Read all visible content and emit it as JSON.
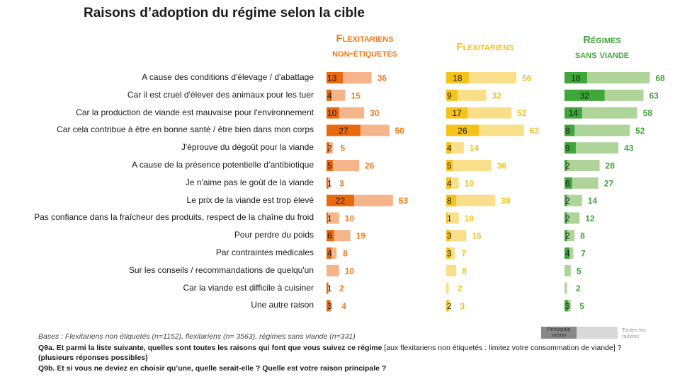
{
  "chart_data": {
    "type": "bar",
    "title": "Raisons d’adoption du régime selon la cible",
    "xlabel": "",
    "ylabel": "",
    "unit": "%",
    "categories": [
      "A cause des conditions d'élevage / d'abattage",
      "Car il est cruel d'élever des animaux pour les tuer",
      "Car la production de viande est mauvaise pour l'environnement",
      "Car cela contribue à être en bonne santé / être bien dans mon corps",
      "J'éprouve du dégoût pour la viande",
      "A cause de la présence potentielle d’antibiotique",
      "Je n'aime pas le goût de la viande",
      "Le prix de la viande est trop élevé",
      "Pas confiance dans la fraîcheur des produits, respect de la chaîne du froid",
      "Pour perdre du poids",
      "Par contraintes médicales",
      "Sur les conseils / recommandations de quelqu'un",
      "Car la viande est difficile à cuisiner",
      "Une autre raison"
    ],
    "groups": [
      {
        "name_line1": "Flexitariens",
        "name_line2": "non-étiquetés",
        "color_main": "#e8690e",
        "color_all": "#f5b48a",
        "color_text": "#f07a1a",
        "principale": [
          13,
          4,
          10,
          27,
          2,
          5,
          1,
          22,
          1,
          6,
          4,
          null,
          1,
          3
        ],
        "toutes": [
          36,
          15,
          30,
          50,
          5,
          26,
          3,
          53,
          10,
          19,
          8,
          10,
          2,
          4
        ]
      },
      {
        "name_line1": "Flexitariens",
        "name_line2": "",
        "color_main": "#f5c21a",
        "color_all": "#fadf8a",
        "color_text": "#f5c21a",
        "principale": [
          18,
          9,
          17,
          26,
          4,
          5,
          4,
          8,
          1,
          3,
          3,
          null,
          null,
          2
        ],
        "toutes": [
          56,
          32,
          52,
          62,
          14,
          36,
          10,
          39,
          10,
          16,
          7,
          8,
          2,
          3
        ]
      },
      {
        "name_line1": "Régimes",
        "name_line2": "sans viande",
        "color_main": "#3fa63a",
        "color_all": "#aed49a",
        "color_text": "#3fa63a",
        "principale": [
          18,
          32,
          14,
          8,
          9,
          2,
          6,
          2,
          2,
          2,
          4,
          null,
          null,
          3
        ],
        "toutes": [
          68,
          63,
          58,
          52,
          43,
          28,
          27,
          14,
          12,
          8,
          7,
          5,
          2,
          5
        ]
      }
    ],
    "legend": {
      "principale": "Principale raison",
      "toutes": "Toutes les raisons",
      "placement": "bottom-right"
    },
    "grid": false
  },
  "footer": {
    "bases": "Bases : Flexitariens non étiquetés (n=1152), flexitariens (n= 3563), régimes sans viande (n=331)",
    "q9a_bold": "Q9a. Et parmi la liste suivante, quelles sont toutes les raisons qui font que vous suivez ce régime",
    "q9a_normal": " [aux flexitariens non étiquetés : limitez votre consommation de viande] ?",
    "q9a_note": "(plusieurs réponses possibles)",
    "q9b": "Q9b. Et si vous ne deviez en choisir qu’une, quelle serait-elle ? Quelle est votre raison principale  ?"
  },
  "legend_labels": {
    "principale_line1": "Principale",
    "principale_line2": "raison",
    "toutes_line1": "Toutes les",
    "toutes_line2": "raisons"
  }
}
